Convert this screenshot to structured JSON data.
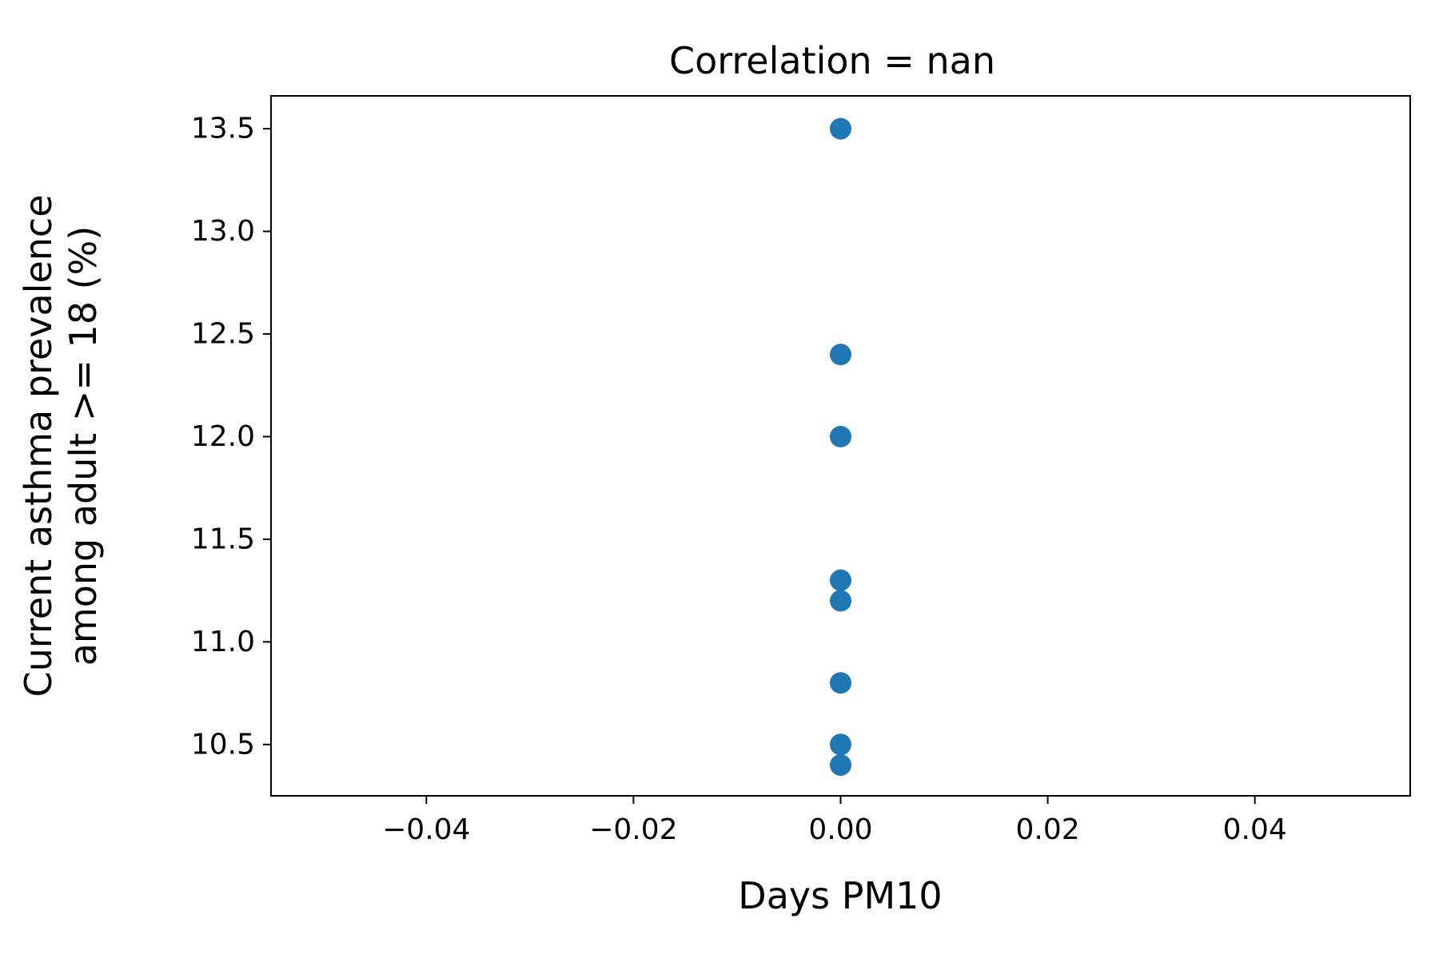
{
  "chart_data": {
    "type": "scatter",
    "title": "Correlation = nan",
    "xlabel": "Days PM10",
    "ylabel_lines": [
      "Current asthma prevalence",
      "among adult >= 18 (%)"
    ],
    "xlim": [
      -0.055,
      0.055
    ],
    "ylim": [
      10.25,
      13.66
    ],
    "x_ticks": [
      -0.04,
      -0.02,
      0.0,
      0.02,
      0.04
    ],
    "x_tick_labels": [
      "−0.04",
      "−0.02",
      "0.00",
      "0.02",
      "0.04"
    ],
    "y_ticks": [
      10.5,
      11.0,
      11.5,
      12.0,
      12.5,
      13.0,
      13.5
    ],
    "y_tick_labels": [
      "10.5",
      "11.0",
      "11.5",
      "12.0",
      "12.5",
      "13.0",
      "13.5"
    ],
    "grid": false,
    "series": [
      {
        "color": "#1f77b4",
        "points": [
          {
            "x": 0.0,
            "y": 13.5
          },
          {
            "x": 0.0,
            "y": 12.4
          },
          {
            "x": 0.0,
            "y": 12.0
          },
          {
            "x": 0.0,
            "y": 11.3
          },
          {
            "x": 0.0,
            "y": 11.2
          },
          {
            "x": 0.0,
            "y": 10.8
          },
          {
            "x": 0.0,
            "y": 10.5
          },
          {
            "x": 0.0,
            "y": 10.4
          }
        ]
      }
    ]
  }
}
